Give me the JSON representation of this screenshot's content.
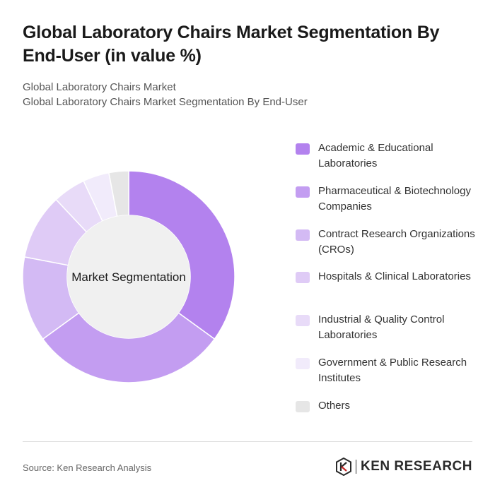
{
  "header": {
    "title": "Global Laboratory Chairs Market Segmentation By End-User (in value %)",
    "subtitle_line1": "Global Laboratory Chairs Market",
    "subtitle_line2": "Global Laboratory Chairs Market Segmentation By End-User"
  },
  "chart_data": {
    "type": "pie",
    "variant": "donut",
    "center_label": "Market Segmentation",
    "legend_placement": "right",
    "categories": [
      "Academic & Educational Laboratories",
      "Pharmaceutical & Biotechnology Companies",
      "Contract Research Organizations (CROs)",
      "Hospitals & Clinical Laboratories",
      "Industrial & Quality Control Laboratories",
      "Government & Public Research Institutes",
      "Others"
    ],
    "values": [
      35,
      30,
      13,
      10,
      5,
      4,
      3
    ],
    "colors": [
      "#b382ee",
      "#c39df1",
      "#d3baf4",
      "#dfcbf6",
      "#e8dbf8",
      "#f1ebfb",
      "#e6e6e6"
    ]
  },
  "footer": {
    "source": "Source: Ken Research Analysis",
    "brand": "KEN RESEARCH",
    "brand_icon": "ken-research-logo-icon"
  }
}
